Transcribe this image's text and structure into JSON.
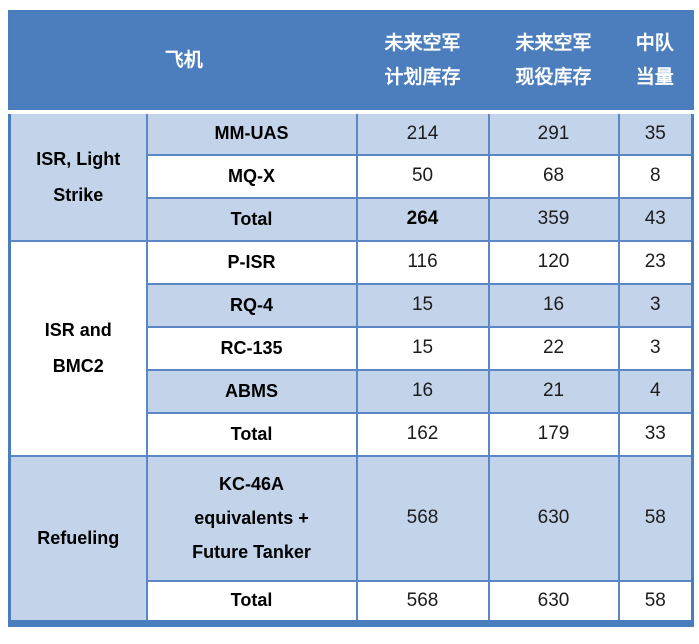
{
  "header": {
    "aircraft": "飞机",
    "planned": [
      "未来空军",
      "计划库存"
    ],
    "active": [
      "未来空军",
      "现役库存"
    ],
    "squadron": [
      "中队",
      "当量"
    ]
  },
  "groups": [
    {
      "name": "ISR, Light Strike",
      "lines": [
        "ISR, Light",
        "Strike"
      ]
    },
    {
      "name": "ISR and BMC2",
      "lines": [
        "ISR and",
        "BMC2"
      ]
    },
    {
      "name": "Refueling",
      "lines": [
        "Refueling"
      ]
    }
  ],
  "rows": [
    {
      "aircraft": "MM-UAS",
      "planned": "214",
      "active": "291",
      "squadron": "35"
    },
    {
      "aircraft": "MQ-X",
      "planned": "50",
      "active": "68",
      "squadron": "8"
    },
    {
      "aircraft": "Total",
      "planned": "264",
      "active": "359",
      "squadron": "43"
    },
    {
      "aircraft": "P-ISR",
      "planned": "116",
      "active": "120",
      "squadron": "23"
    },
    {
      "aircraft": "RQ-4",
      "planned": "15",
      "active": "16",
      "squadron": "3"
    },
    {
      "aircraft": "RC-135",
      "planned": "15",
      "active": "22",
      "squadron": "3"
    },
    {
      "aircraft": "ABMS",
      "planned": "16",
      "active": "21",
      "squadron": "4"
    },
    {
      "aircraft": "Total",
      "planned": "162",
      "active": "179",
      "squadron": "33"
    },
    {
      "aircraft_lines": [
        "KC-46A",
        "equivalents +",
        "Future Tanker"
      ],
      "planned": "568",
      "active": "630",
      "squadron": "58"
    },
    {
      "aircraft": "Total",
      "planned": "568",
      "active": "630",
      "squadron": "58"
    }
  ],
  "colors": {
    "header_bg": "#4c7ebd",
    "band_bg": "#c3d3e9",
    "border": "#5b87c5",
    "outer_border": "#4a7dbd"
  },
  "chart_data": {
    "type": "table",
    "columns": [
      "飞机 (分类)",
      "飞机 (机型)",
      "未来空军计划库存",
      "未来空军现役库存",
      "中队当量"
    ],
    "rows": [
      [
        "ISR, Light Strike",
        "MM-UAS",
        214,
        291,
        35
      ],
      [
        "ISR, Light Strike",
        "MQ-X",
        50,
        68,
        8
      ],
      [
        "ISR, Light Strike",
        "Total",
        264,
        359,
        43
      ],
      [
        "ISR and BMC2",
        "P-ISR",
        116,
        120,
        23
      ],
      [
        "ISR and BMC2",
        "RQ-4",
        15,
        16,
        3
      ],
      [
        "ISR and BMC2",
        "RC-135",
        15,
        22,
        3
      ],
      [
        "ISR and BMC2",
        "ABMS",
        16,
        21,
        4
      ],
      [
        "ISR and BMC2",
        "Total",
        162,
        179,
        33
      ],
      [
        "Refueling",
        "KC-46A equivalents + Future Tanker",
        568,
        630,
        58
      ],
      [
        "Refueling",
        "Total",
        568,
        630,
        58
      ]
    ]
  }
}
